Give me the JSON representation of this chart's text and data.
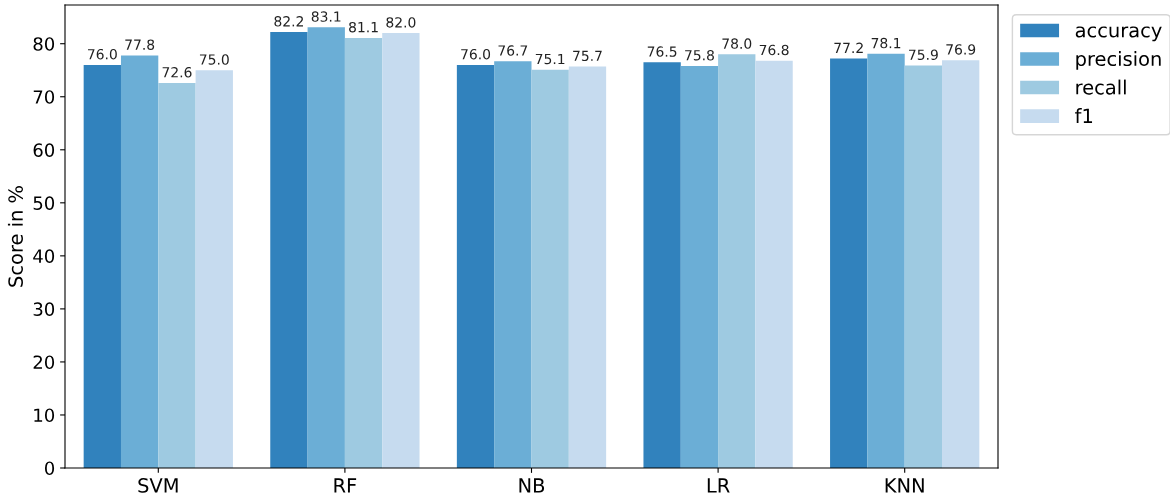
{
  "chart_data": {
    "type": "bar",
    "ylabel": "Score in %",
    "categories": [
      "SVM",
      "RF",
      "NB",
      "LR",
      "KNN"
    ],
    "series": [
      {
        "name": "accuracy",
        "color": "#3182bd",
        "values": [
          76.0,
          82.2,
          76.0,
          76.5,
          77.2
        ],
        "value_labels": [
          "76.0",
          "82.2",
          "76.0",
          "76.5",
          "77.2"
        ]
      },
      {
        "name": "precision",
        "color": "#6baed6",
        "values": [
          77.8,
          83.1,
          76.7,
          75.8,
          78.1
        ],
        "value_labels": [
          "77.8",
          "83.1",
          "76.7",
          "75.8",
          "78.1"
        ]
      },
      {
        "name": "recall",
        "color": "#9ecae1",
        "values": [
          72.6,
          81.1,
          75.1,
          78.0,
          75.9
        ],
        "value_labels": [
          "72.6",
          "81.1",
          "75.1",
          "78.0",
          "75.9"
        ]
      },
      {
        "name": "f1",
        "color": "#c6dbef",
        "values": [
          75.0,
          82.0,
          75.7,
          76.8,
          76.9
        ],
        "value_labels": [
          "75.0",
          "82.0",
          "75.7",
          "76.8",
          "76.9"
        ]
      }
    ],
    "ylim": [
      0,
      87.3
    ],
    "yticks": [
      0,
      10,
      20,
      30,
      40,
      50,
      60,
      70,
      80
    ],
    "grid": false,
    "legend": "top right"
  }
}
